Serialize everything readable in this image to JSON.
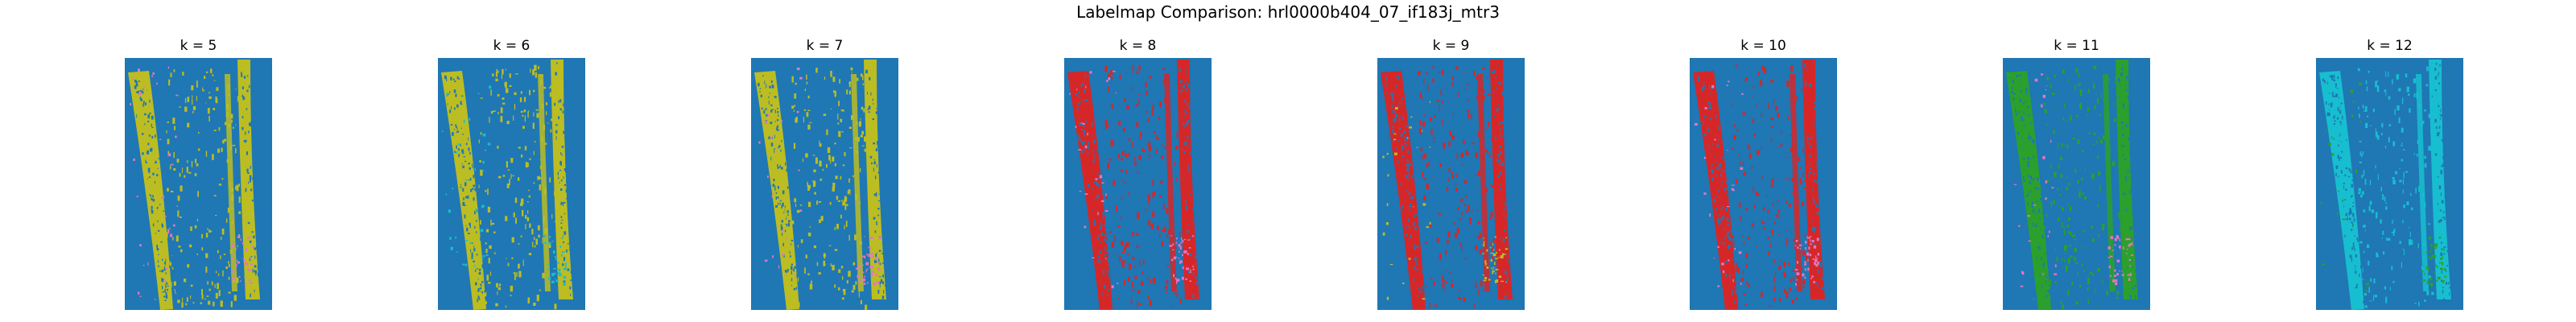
{
  "figure": {
    "title": "Labelmap Comparison: hrl0000b404_07_if183j_mtr3"
  },
  "panels": [
    {
      "title": "k = 5",
      "stripe_color": "#bcbd22",
      "accent_color": "#e377c2"
    },
    {
      "title": "k = 6",
      "stripe_color": "#bcbd22",
      "accent_color": "#17becf"
    },
    {
      "title": "k = 7",
      "stripe_color": "#bcbd22",
      "accent_color": "#e377c2"
    },
    {
      "title": "k = 8",
      "stripe_color": "#d62728",
      "accent_color": "#e377c2"
    },
    {
      "title": "k = 9",
      "stripe_color": "#d62728",
      "accent_color": "#bcbd22"
    },
    {
      "title": "k = 10",
      "stripe_color": "#d62728",
      "accent_color": "#e377c2"
    },
    {
      "title": "k = 11",
      "stripe_color": "#2ca02c",
      "accent_color": "#e377c2"
    },
    {
      "title": "k = 12",
      "stripe_color": "#17becf",
      "accent_color": "#2ca02c"
    }
  ],
  "colors": {
    "background": "#1f77b4"
  }
}
